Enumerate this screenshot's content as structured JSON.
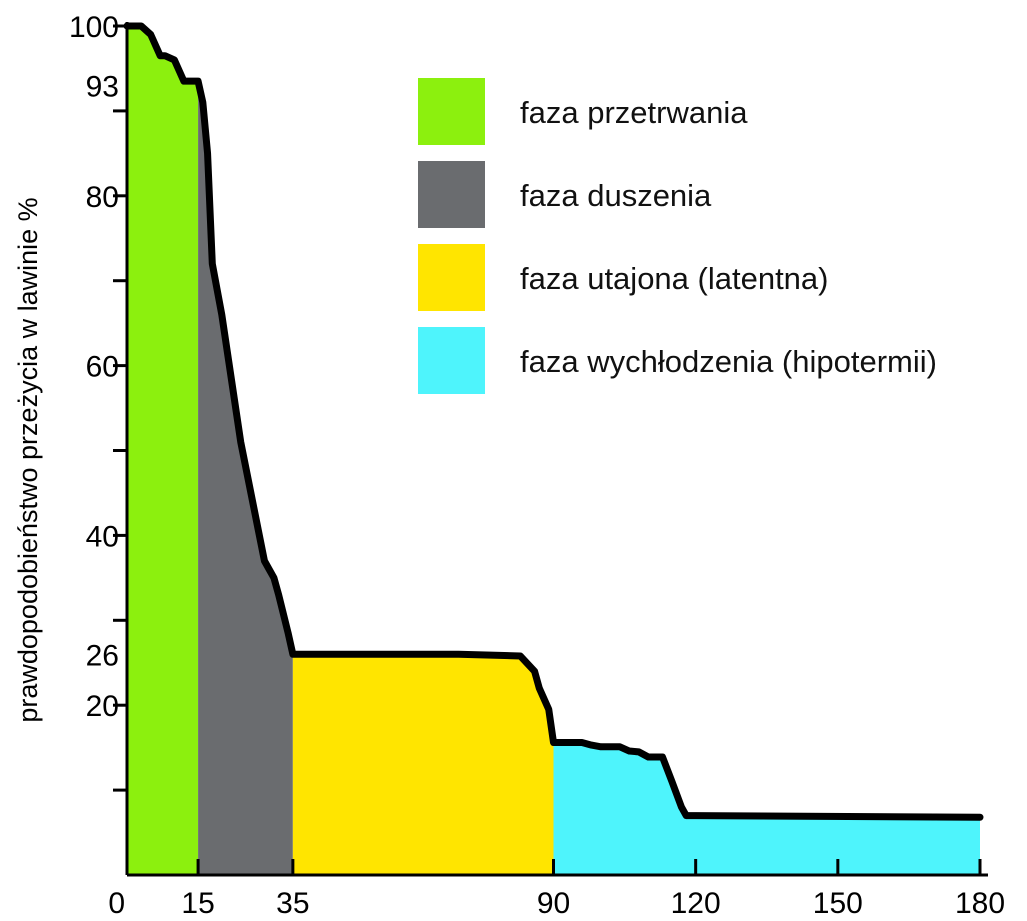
{
  "chart_data": {
    "type": "area",
    "ylabel": "prawdopodobieństwo przeżycia w lawinie %",
    "xlabel": "",
    "xlim": [
      0,
      180
    ],
    "ylim": [
      0,
      100
    ],
    "x_ticks": [
      0,
      15,
      35,
      90,
      120,
      150,
      180
    ],
    "x_tick_labels": [
      "0",
      "15",
      "35",
      "90",
      "120",
      "150",
      "180"
    ],
    "y_ticks": [
      10,
      20,
      30,
      40,
      50,
      60,
      70,
      80,
      90,
      100
    ],
    "y_tick_labels": [
      "100",
      "93",
      "80",
      "60",
      "40",
      "26",
      "20"
    ],
    "y_tick_label_values": [
      100,
      93,
      80,
      60,
      40,
      26,
      20
    ],
    "grid": false,
    "legend_position": "top-right",
    "curve": {
      "x": [
        0,
        3,
        5,
        7,
        8,
        10,
        12,
        15,
        16,
        17,
        18,
        20,
        24,
        29,
        30,
        31,
        32,
        34,
        35,
        40,
        70,
        83,
        86,
        87,
        89,
        90,
        96,
        98,
        100,
        104,
        106,
        108,
        110,
        113,
        115,
        117,
        118,
        120,
        180
      ],
      "y": [
        100,
        100,
        99,
        96.5,
        96.5,
        96,
        93.5,
        93.5,
        91,
        85,
        72,
        66,
        51,
        37,
        36,
        35,
        33,
        28.5,
        26,
        26,
        26,
        25.8,
        24,
        22,
        19.5,
        15.6,
        15.6,
        15.3,
        15.1,
        15.1,
        14.6,
        14.5,
        13.9,
        13.9,
        11,
        8,
        7,
        7,
        6.8
      ]
    },
    "phases": [
      {
        "name": "faza przetrwania",
        "x_start": 0,
        "x_end": 15,
        "color": "#8cf00e"
      },
      {
        "name": "faza duszenia",
        "x_start": 15,
        "x_end": 35,
        "color": "#6a6c6f"
      },
      {
        "name": "faza utajona (latentna)",
        "x_start": 35,
        "x_end": 90,
        "color": "#ffe500"
      },
      {
        "name": "faza wychłodzenia (hipotermii)",
        "x_start": 90,
        "x_end": 180,
        "color": "#4ef4fc"
      }
    ]
  }
}
